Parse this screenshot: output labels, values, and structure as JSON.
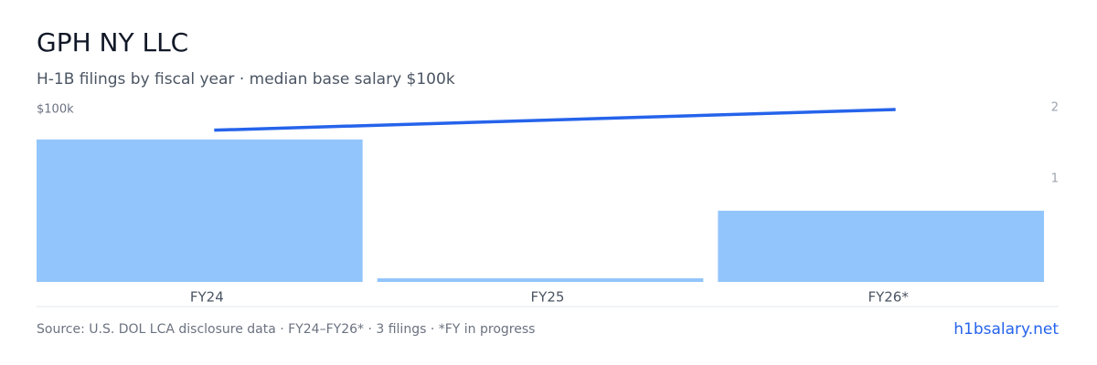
{
  "chart_data": {
    "type": "bar",
    "title": "GPH NY LLC",
    "subtitle": "H-1B filings by fiscal year · median base salary $100k",
    "categories": [
      "FY24",
      "FY25",
      "FY26*"
    ],
    "series": [
      {
        "type": "bar",
        "color": "#93c5fd",
        "values": [
          2,
          0,
          1
        ],
        "axis": "y2"
      },
      {
        "type": "line",
        "color": "#2563eb",
        "values": [
          88000,
          null,
          100000
        ]
      }
    ],
    "ylim": [
      0,
      100000
    ],
    "yticks": [
      {
        "value": 100000,
        "label": "$100k"
      }
    ],
    "y2lim": [
      0,
      2.42
    ],
    "y2ticks": [
      1,
      2
    ],
    "source": "Source: U.S. DOL LCA disclosure data · FY24–FY26* · 3 filings · *FY in progress",
    "brand": "h1bsalary.net"
  }
}
